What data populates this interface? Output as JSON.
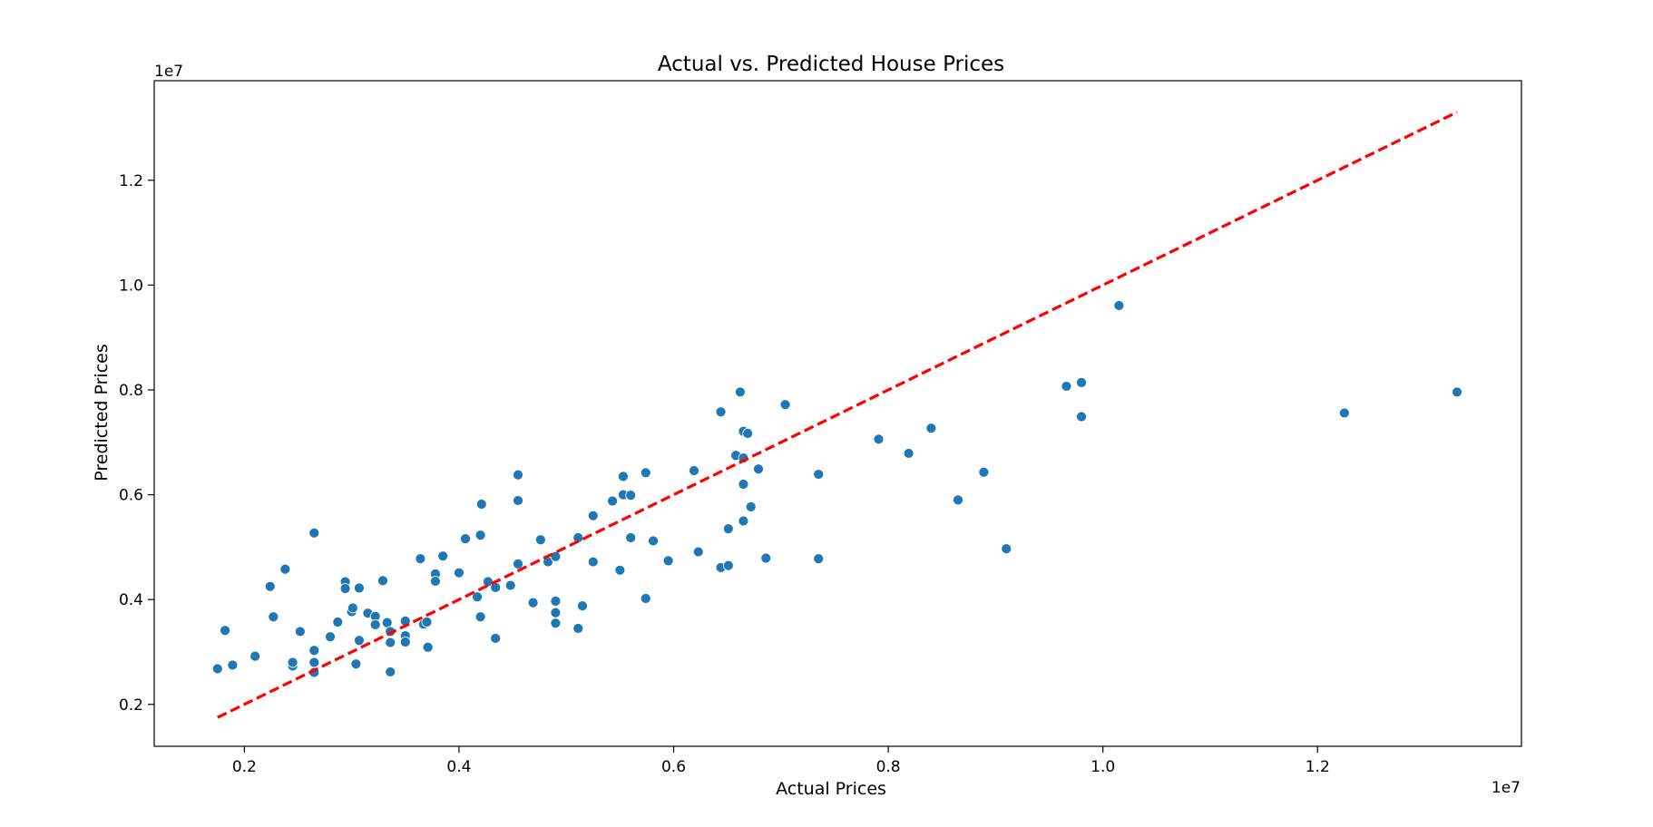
{
  "chart_data": {
    "type": "scatter",
    "title": "Actual vs. Predicted House Prices",
    "xlabel": "Actual Prices",
    "ylabel": "Predicted Prices",
    "x_offset_label": "1e7",
    "y_offset_label": "1e7",
    "xlim": [
      1.16,
      13.9
    ],
    "ylim": [
      1.2,
      13.9
    ],
    "x_ticks": [
      {
        "value": 2,
        "label": "0.2"
      },
      {
        "value": 4,
        "label": "0.4"
      },
      {
        "value": 6,
        "label": "0.6"
      },
      {
        "value": 8,
        "label": "0.8"
      },
      {
        "value": 10,
        "label": "1.0"
      },
      {
        "value": 12,
        "label": "1.2"
      }
    ],
    "y_ticks": [
      {
        "value": 2,
        "label": "0.2"
      },
      {
        "value": 4,
        "label": "0.4"
      },
      {
        "value": 6,
        "label": "0.6"
      },
      {
        "value": 8,
        "label": "0.8"
      },
      {
        "value": 10,
        "label": "1.0"
      },
      {
        "value": 12,
        "label": "1.2"
      }
    ],
    "grid": false,
    "point_color": "#1f77b4",
    "reference_line": {
      "style": "dashed",
      "color": "#ff0000",
      "x": [
        1.75,
        13.3
      ],
      "y": [
        1.75,
        13.3
      ]
    },
    "points": [
      {
        "x": 1.75,
        "y": 2.68
      },
      {
        "x": 1.82,
        "y": 3.41
      },
      {
        "x": 1.89,
        "y": 2.75
      },
      {
        "x": 2.1,
        "y": 2.92
      },
      {
        "x": 2.24,
        "y": 4.25
      },
      {
        "x": 2.27,
        "y": 3.67
      },
      {
        "x": 2.38,
        "y": 4.58
      },
      {
        "x": 2.45,
        "y": 2.73
      },
      {
        "x": 2.45,
        "y": 2.8
      },
      {
        "x": 2.52,
        "y": 3.39
      },
      {
        "x": 2.65,
        "y": 5.27
      },
      {
        "x": 2.65,
        "y": 3.03
      },
      {
        "x": 2.65,
        "y": 2.8
      },
      {
        "x": 2.65,
        "y": 2.61
      },
      {
        "x": 2.8,
        "y": 3.29
      },
      {
        "x": 2.87,
        "y": 3.57
      },
      {
        "x": 2.94,
        "y": 4.34
      },
      {
        "x": 2.94,
        "y": 4.21
      },
      {
        "x": 3.0,
        "y": 3.77
      },
      {
        "x": 3.01,
        "y": 3.84
      },
      {
        "x": 3.04,
        "y": 2.77
      },
      {
        "x": 3.07,
        "y": 4.22
      },
      {
        "x": 3.07,
        "y": 3.22
      },
      {
        "x": 3.15,
        "y": 3.74
      },
      {
        "x": 3.22,
        "y": 3.68
      },
      {
        "x": 3.22,
        "y": 3.52
      },
      {
        "x": 3.29,
        "y": 4.36
      },
      {
        "x": 3.33,
        "y": 3.56
      },
      {
        "x": 3.36,
        "y": 3.39
      },
      {
        "x": 3.36,
        "y": 3.18
      },
      {
        "x": 3.36,
        "y": 2.62
      },
      {
        "x": 3.5,
        "y": 3.59
      },
      {
        "x": 3.5,
        "y": 3.31
      },
      {
        "x": 3.5,
        "y": 3.19
      },
      {
        "x": 3.64,
        "y": 4.78
      },
      {
        "x": 3.67,
        "y": 3.53
      },
      {
        "x": 3.7,
        "y": 3.57
      },
      {
        "x": 3.71,
        "y": 3.09
      },
      {
        "x": 3.78,
        "y": 4.49
      },
      {
        "x": 3.78,
        "y": 4.35
      },
      {
        "x": 3.85,
        "y": 4.83
      },
      {
        "x": 4.0,
        "y": 4.51
      },
      {
        "x": 4.06,
        "y": 5.16
      },
      {
        "x": 4.17,
        "y": 4.05
      },
      {
        "x": 4.2,
        "y": 5.23
      },
      {
        "x": 4.2,
        "y": 3.67
      },
      {
        "x": 4.21,
        "y": 5.82
      },
      {
        "x": 4.27,
        "y": 4.34
      },
      {
        "x": 4.34,
        "y": 4.23
      },
      {
        "x": 4.34,
        "y": 3.26
      },
      {
        "x": 4.48,
        "y": 4.27
      },
      {
        "x": 4.55,
        "y": 6.38
      },
      {
        "x": 4.55,
        "y": 5.89
      },
      {
        "x": 4.55,
        "y": 4.68
      },
      {
        "x": 4.69,
        "y": 3.94
      },
      {
        "x": 4.76,
        "y": 5.14
      },
      {
        "x": 4.83,
        "y": 4.72
      },
      {
        "x": 4.9,
        "y": 4.82
      },
      {
        "x": 4.9,
        "y": 3.97
      },
      {
        "x": 4.9,
        "y": 3.75
      },
      {
        "x": 4.9,
        "y": 3.55
      },
      {
        "x": 5.11,
        "y": 5.18
      },
      {
        "x": 5.11,
        "y": 3.45
      },
      {
        "x": 5.15,
        "y": 3.88
      },
      {
        "x": 5.25,
        "y": 5.6
      },
      {
        "x": 5.25,
        "y": 4.72
      },
      {
        "x": 5.43,
        "y": 5.88
      },
      {
        "x": 5.5,
        "y": 4.56
      },
      {
        "x": 5.53,
        "y": 6.35
      },
      {
        "x": 5.53,
        "y": 6.0
      },
      {
        "x": 5.6,
        "y": 5.99
      },
      {
        "x": 5.6,
        "y": 5.18
      },
      {
        "x": 5.74,
        "y": 6.42
      },
      {
        "x": 5.74,
        "y": 4.02
      },
      {
        "x": 5.81,
        "y": 5.12
      },
      {
        "x": 5.95,
        "y": 4.74
      },
      {
        "x": 6.19,
        "y": 6.46
      },
      {
        "x": 6.23,
        "y": 4.91
      },
      {
        "x": 6.44,
        "y": 7.58
      },
      {
        "x": 6.44,
        "y": 4.61
      },
      {
        "x": 6.51,
        "y": 5.35
      },
      {
        "x": 6.51,
        "y": 4.65
      },
      {
        "x": 6.58,
        "y": 6.75
      },
      {
        "x": 6.62,
        "y": 7.96
      },
      {
        "x": 6.65,
        "y": 7.21
      },
      {
        "x": 6.65,
        "y": 6.7
      },
      {
        "x": 6.65,
        "y": 6.2
      },
      {
        "x": 6.65,
        "y": 5.5
      },
      {
        "x": 6.69,
        "y": 7.17
      },
      {
        "x": 6.72,
        "y": 5.77
      },
      {
        "x": 6.79,
        "y": 6.49
      },
      {
        "x": 6.86,
        "y": 4.79
      },
      {
        "x": 7.04,
        "y": 7.72
      },
      {
        "x": 7.35,
        "y": 6.39
      },
      {
        "x": 7.35,
        "y": 4.78
      },
      {
        "x": 7.91,
        "y": 7.06
      },
      {
        "x": 8.19,
        "y": 6.79
      },
      {
        "x": 8.4,
        "y": 7.27
      },
      {
        "x": 8.65,
        "y": 5.9
      },
      {
        "x": 8.89,
        "y": 6.43
      },
      {
        "x": 9.1,
        "y": 4.97
      },
      {
        "x": 9.66,
        "y": 8.07
      },
      {
        "x": 9.8,
        "y": 8.14
      },
      {
        "x": 9.8,
        "y": 7.49
      },
      {
        "x": 10.15,
        "y": 9.61
      },
      {
        "x": 12.25,
        "y": 7.56
      },
      {
        "x": 13.3,
        "y": 7.96
      }
    ]
  }
}
